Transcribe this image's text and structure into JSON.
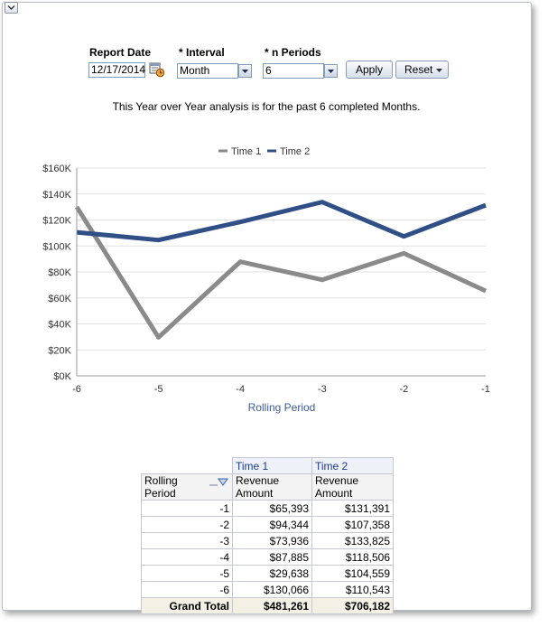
{
  "prompts": {
    "report_date_label": "Report Date",
    "report_date_value": "12/17/2014",
    "interval_label": "* Interval",
    "interval_value": "Month",
    "n_periods_label": "* n Periods",
    "n_periods_value": "6",
    "apply_label": "Apply",
    "reset_label": "Reset"
  },
  "description": "This Year over Year analysis is for the past 6 completed Months.",
  "colors": {
    "time1": "#8a8a8a",
    "time2": "#2f4f86",
    "axis_label": "#3c5a9a"
  },
  "chart_data": {
    "type": "line",
    "x": [
      -6,
      -5,
      -4,
      -3,
      -2,
      -1
    ],
    "x_tick_labels": [
      "-6",
      "-5",
      "-4",
      "-3",
      "-2",
      "-1"
    ],
    "xlabel": "Rolling Period",
    "ylabel": "",
    "ylim": [
      0,
      160000
    ],
    "y_tick_labels": [
      "$0K",
      "$20K",
      "$40K",
      "$60K",
      "$80K",
      "$100K",
      "$120K",
      "$140K",
      "$160K"
    ],
    "y_ticks": [
      0,
      20000,
      40000,
      60000,
      80000,
      100000,
      120000,
      140000,
      160000
    ],
    "legend_position": "top-center",
    "grid": true,
    "series": [
      {
        "name": "Time 1",
        "values": [
          130066,
          29638,
          87885,
          73936,
          94344,
          65393
        ]
      },
      {
        "name": "Time 2",
        "values": [
          110543,
          104559,
          118506,
          133825,
          107358,
          131391
        ]
      }
    ]
  },
  "table": {
    "col_time1": "Time 1",
    "col_time2": "Time 2",
    "measure1": "Revenue Amount",
    "measure2": "Revenue Amount",
    "row_header": "Rolling Period",
    "rows": [
      {
        "period": "-1",
        "t1": "$65,393",
        "t2": "$131,391"
      },
      {
        "period": "-2",
        "t1": "$94,344",
        "t2": "$107,358"
      },
      {
        "period": "-3",
        "t1": "$73,936",
        "t2": "$133,825"
      },
      {
        "period": "-4",
        "t1": "$87,885",
        "t2": "$118,506"
      },
      {
        "period": "-5",
        "t1": "$29,638",
        "t2": "$104,559"
      },
      {
        "period": "-6",
        "t1": "$130,066",
        "t2": "$110,543"
      }
    ],
    "total_label": "Grand Total",
    "total_t1": "$481,261",
    "total_t2": "$706,182"
  }
}
